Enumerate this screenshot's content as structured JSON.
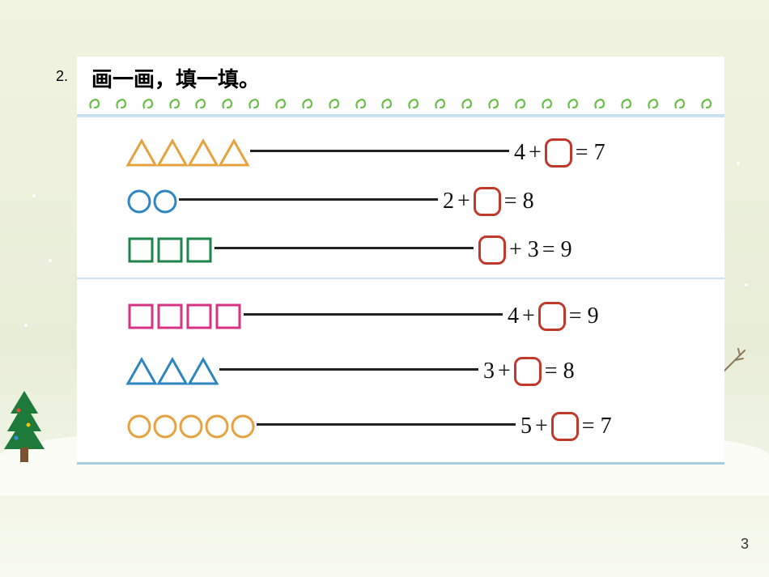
{
  "page_number": "3",
  "question_number": "2.",
  "title": "画一画，填一填。",
  "spiral_count": 24,
  "spiral_color": "#6bbf4a",
  "rows": [
    {
      "shape": "triangle",
      "count": 4,
      "shape_color": "#e6a23c",
      "eq_left": "4",
      "eq_op": "+",
      "blank_pos": "right",
      "eq_right": "= 7",
      "box_color": "#c0392b"
    },
    {
      "shape": "circle",
      "count": 2,
      "shape_color": "#2e86c1",
      "eq_left": "2",
      "eq_op": "+",
      "blank_pos": "right",
      "eq_right": "= 8",
      "box_color": "#c0392b"
    },
    {
      "shape": "square",
      "count": 3,
      "shape_color": "#1e8449",
      "eq_left": "",
      "eq_op": "+ 3",
      "blank_pos": "left",
      "eq_right": "= 9",
      "box_color": "#c0392b"
    },
    {
      "shape": "square",
      "count": 4,
      "shape_color": "#d63384",
      "eq_left": "4",
      "eq_op": "+",
      "blank_pos": "right",
      "eq_right": "= 9",
      "box_color": "#c0392b",
      "separator_before": true
    },
    {
      "shape": "triangle",
      "count": 3,
      "shape_color": "#2e86c1",
      "eq_left": "3",
      "eq_op": "+",
      "blank_pos": "right",
      "eq_right": "= 8",
      "box_color": "#c0392b"
    },
    {
      "shape": "circle",
      "count": 5,
      "shape_color": "#e6a23c",
      "eq_left": "5",
      "eq_op": "+",
      "blank_pos": "right",
      "eq_right": "= 7",
      "box_color": "#c0392b"
    }
  ],
  "colors": {
    "background_top": "#f0f3e0",
    "worksheet_bg": "#ffffff",
    "border_blue": "#a8cde0",
    "line": "#222222",
    "text": "#111111"
  }
}
